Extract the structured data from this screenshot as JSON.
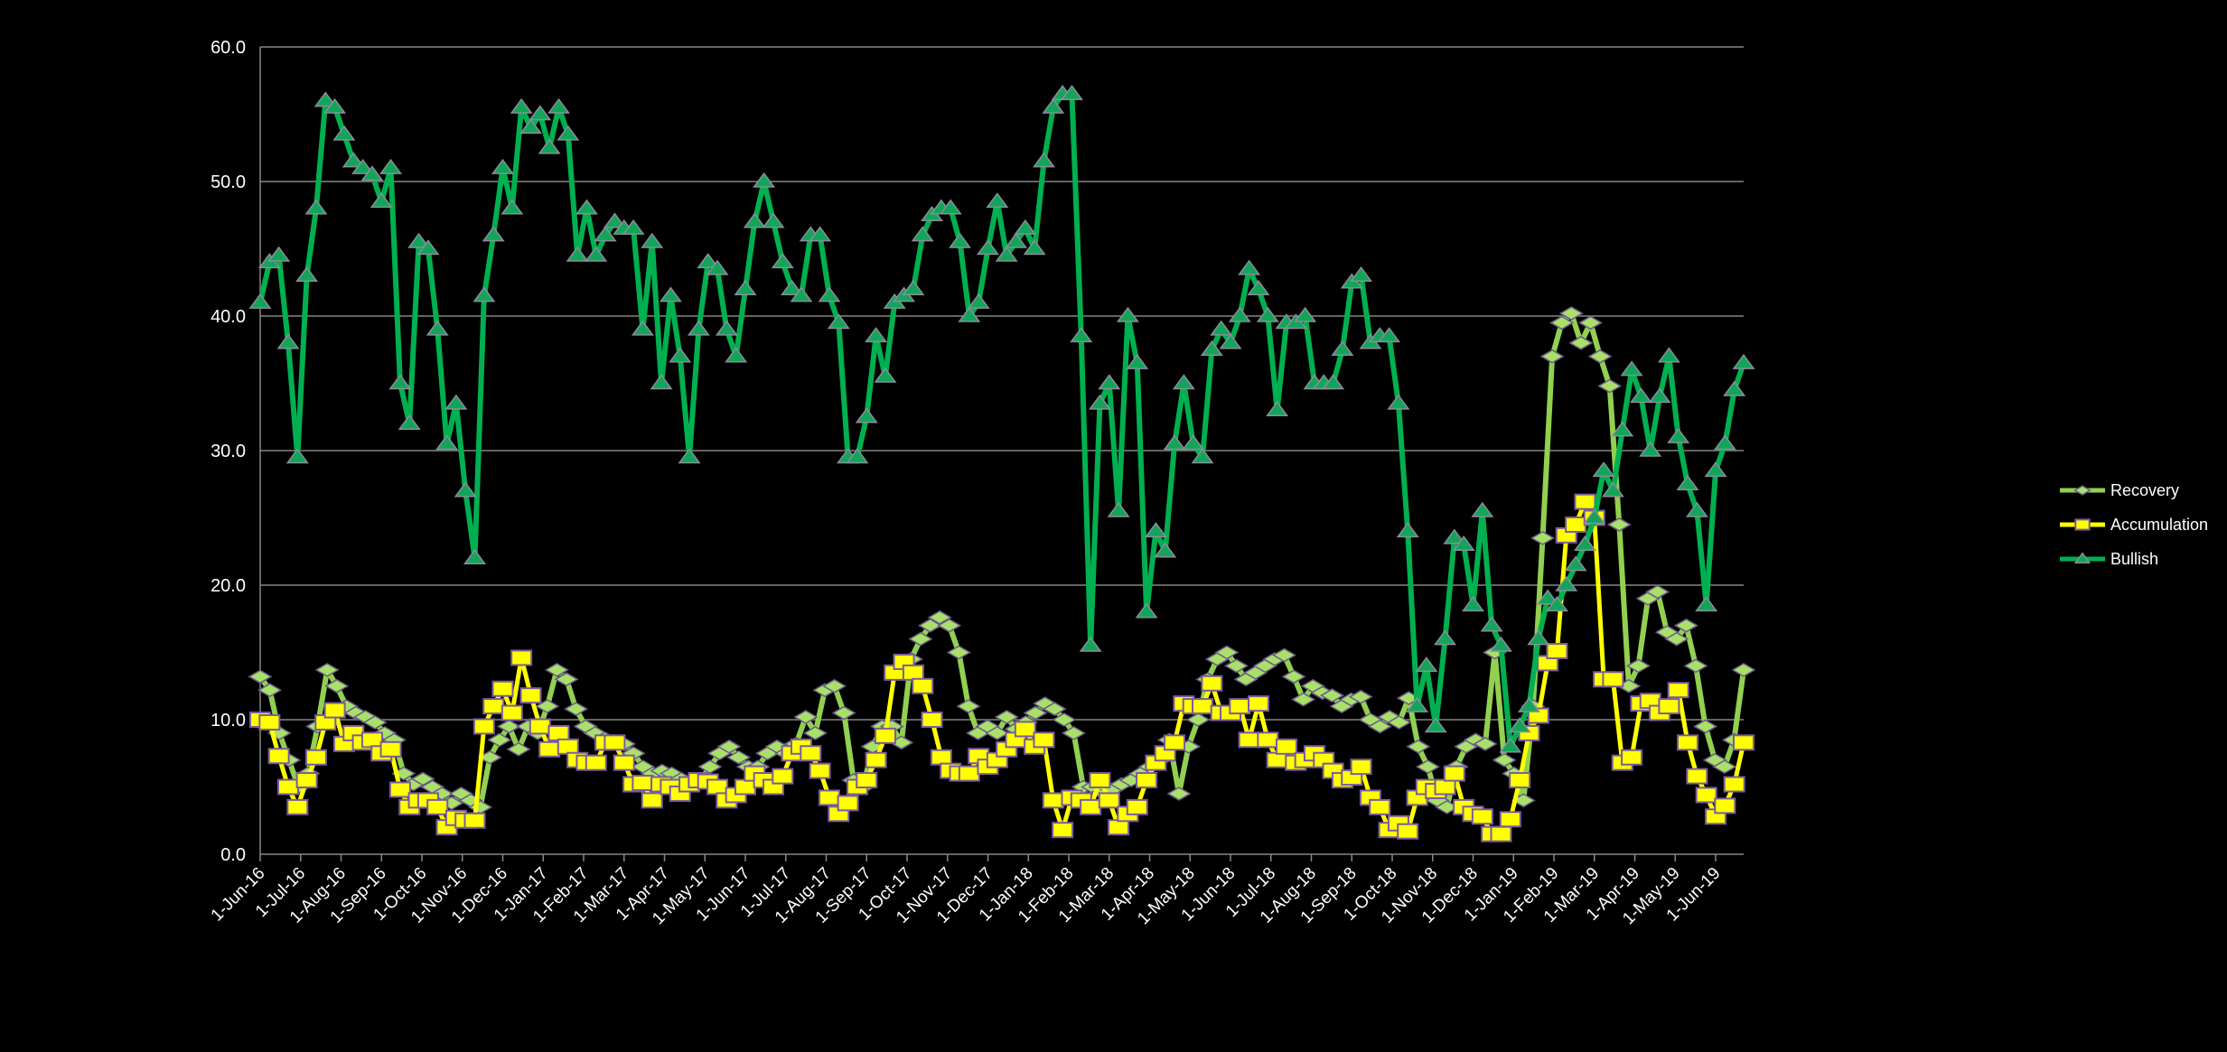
{
  "chart_data": {
    "type": "line",
    "title": "",
    "xlabel": "",
    "ylabel": "",
    "ylim": [
      0,
      60
    ],
    "yticks": [
      "0.0",
      "10.0",
      "20.0",
      "30.0",
      "40.0",
      "50.0",
      "60.0"
    ],
    "grid": true,
    "legend_position": "right",
    "x_tick_labels": [
      "1-Jun-16",
      "1-Jul-16",
      "1-Aug-16",
      "1-Sep-16",
      "1-Oct-16",
      "1-Nov-16",
      "1-Dec-16",
      "1-Jan-17",
      "1-Feb-17",
      "1-Mar-17",
      "1-Apr-17",
      "1-May-17",
      "1-Jun-17",
      "1-Jul-17",
      "1-Aug-17",
      "1-Sep-17",
      "1-Oct-17",
      "1-Nov-17",
      "1-Dec-17",
      "1-Jan-18",
      "1-Feb-18",
      "1-Mar-18",
      "1-Apr-18",
      "1-May-18",
      "1-Jun-18",
      "1-Jul-18",
      "1-Aug-18",
      "1-Sep-18",
      "1-Oct-18",
      "1-Nov-18",
      "1-Dec-18",
      "1-Jan-19",
      "1-Feb-19",
      "1-Mar-19",
      "1-Apr-19",
      "1-May-19",
      "1-Jun-19"
    ],
    "series": [
      {
        "name": "Recovery",
        "color": "#92D050",
        "marker": "diamond",
        "values": [
          13.2,
          12.2,
          9,
          7,
          5,
          6,
          9.5,
          13.7,
          12.5,
          11,
          10.5,
          10.2,
          9.8,
          9,
          8.5,
          6,
          5.2,
          5.6,
          5,
          4.5,
          3.8,
          4.5,
          4,
          3.5,
          7.2,
          8.5,
          9.5,
          7.8,
          9.5,
          9,
          11,
          13.7,
          13,
          10.8,
          9.5,
          9,
          8.6,
          8.3,
          8.2,
          7.5,
          6.5,
          6,
          6.2,
          6,
          5.6,
          5.4,
          5.5,
          6.5,
          7.5,
          8,
          7.2,
          6.5,
          6.5,
          7.5,
          8,
          7.5,
          8.2,
          10.2,
          9,
          12.2,
          12.5,
          10.5,
          5.5,
          5,
          8,
          9.5,
          9.5,
          8.3,
          14.5,
          16,
          17,
          17.6,
          17,
          15,
          11,
          9,
          9.5,
          9,
          10.2,
          9.3,
          9.8,
          10.5,
          11.2,
          10.8,
          10,
          9,
          5,
          5,
          4.6,
          4.8,
          5.2,
          5.5,
          6,
          6.5,
          7,
          8.5,
          4.5,
          8,
          10,
          13,
          14.5,
          15,
          14,
          13,
          13.5,
          14,
          14.5,
          14.8,
          13.2,
          11.5,
          12.5,
          12,
          11.8,
          11,
          11.5,
          11.7,
          10,
          9.5,
          10.2,
          9.8,
          11.6,
          8,
          6.5,
          4,
          3.5,
          6.5,
          8,
          8.5,
          8.2,
          15,
          7,
          6,
          4,
          11,
          23.5,
          37,
          39.5,
          40.2,
          38,
          39.5,
          37,
          34.8,
          24.5,
          12.5,
          14,
          19,
          19.5,
          16.5,
          16,
          17,
          14,
          9.5,
          7,
          6.5,
          8.5,
          13.7
        ]
      },
      {
        "name": "Accumulation",
        "color": "#FFFF00",
        "marker": "square",
        "values": [
          10,
          9.8,
          7.3,
          5,
          3.5,
          5.5,
          7.2,
          9.8,
          10.7,
          8.2,
          9,
          8.3,
          8.5,
          7.5,
          7.8,
          4.8,
          3.5,
          4,
          4,
          3.5,
          2,
          2.7,
          2.5,
          2.5,
          9.5,
          11,
          12.3,
          10.5,
          14.6,
          11.8,
          9.5,
          7.8,
          9,
          8,
          7,
          6.8,
          6.8,
          8.3,
          8.3,
          6.8,
          5.2,
          5.3,
          4,
          5.2,
          5,
          4.5,
          5.2,
          5.5,
          5.4,
          5,
          4,
          4.4,
          5,
          6,
          5.5,
          5,
          5.8,
          7.5,
          8,
          7.5,
          6.2,
          4.2,
          3,
          3.8,
          5,
          5.5,
          7,
          8.8,
          13.5,
          14.3,
          13.5,
          12.5,
          10,
          7.2,
          6.2,
          6,
          6,
          7.3,
          6.5,
          7,
          7.8,
          8.5,
          9.3,
          8,
          8.5,
          4,
          1.8,
          4.2,
          4,
          3.5,
          5.5,
          4,
          2,
          3,
          3.5,
          5.5,
          6.8,
          7.5,
          8.3,
          11.2,
          11,
          11,
          12.7,
          10.5,
          10.5,
          11,
          8.5,
          11.2,
          8.5,
          7,
          8,
          6.8,
          7,
          7.5,
          7,
          6.2,
          5.5,
          5.7,
          6.5,
          4.2,
          3.5,
          1.8,
          2.3,
          1.7,
          4.2,
          5,
          4.7,
          5,
          6,
          3.5,
          3,
          2.8,
          1.5,
          1.5,
          2.6,
          5.5,
          9,
          10.3,
          14.2,
          15.1,
          23.7,
          24.5,
          26.2,
          25,
          13,
          13,
          6.8,
          7.2,
          11.2,
          11.4,
          10.5,
          11,
          12.2,
          8.3,
          5.8,
          4.4,
          2.8,
          3.6,
          5.2,
          8.3
        ]
      },
      {
        "name": "Bullish",
        "color": "#00B050",
        "marker": "triangle",
        "values": [
          41,
          44,
          44.5,
          38,
          29.5,
          43,
          48,
          56,
          55.5,
          53.5,
          51.5,
          51,
          50.5,
          48.5,
          51,
          35,
          32,
          45.5,
          45,
          39,
          30.5,
          33.5,
          27,
          22,
          41.5,
          46,
          51,
          48,
          55.5,
          54,
          55,
          52.5,
          55.5,
          53.5,
          44.5,
          48,
          44.5,
          46,
          47,
          46.5,
          46.5,
          39,
          45.5,
          35,
          41.5,
          37,
          29.5,
          39,
          44,
          43.5,
          39,
          37,
          42,
          47,
          50,
          47,
          44,
          42,
          41.5,
          46,
          46,
          41.5,
          39.5,
          29.5,
          29.5,
          32.5,
          38.5,
          35.5,
          41,
          41.5,
          42,
          46,
          47.5,
          48,
          48,
          45.5,
          40,
          41,
          45,
          48.5,
          44.5,
          45.5,
          46.5,
          45,
          51.5,
          55.5,
          56.5,
          56.5,
          38.5,
          15.5,
          33.5,
          35,
          25.5,
          40,
          36.5,
          18,
          24,
          22.5,
          30.5,
          35,
          30.5,
          29.5,
          37.5,
          39,
          38,
          40,
          43.5,
          42,
          40,
          33,
          39.5,
          39.5,
          40,
          35,
          35,
          35,
          37.5,
          42.5,
          43,
          38,
          38.5,
          38.5,
          33.5,
          24,
          11,
          14,
          9.5,
          16,
          23.5,
          23,
          18.5,
          25.5,
          17,
          15.5,
          8,
          9.5,
          11,
          16,
          19,
          18.5,
          20,
          21.5,
          23,
          25,
          28.5,
          27,
          31.5,
          36,
          34,
          30,
          34,
          37,
          31,
          27.5,
          25.5,
          18.5,
          28.5,
          30.5,
          34.5,
          36.5
        ]
      }
    ]
  }
}
